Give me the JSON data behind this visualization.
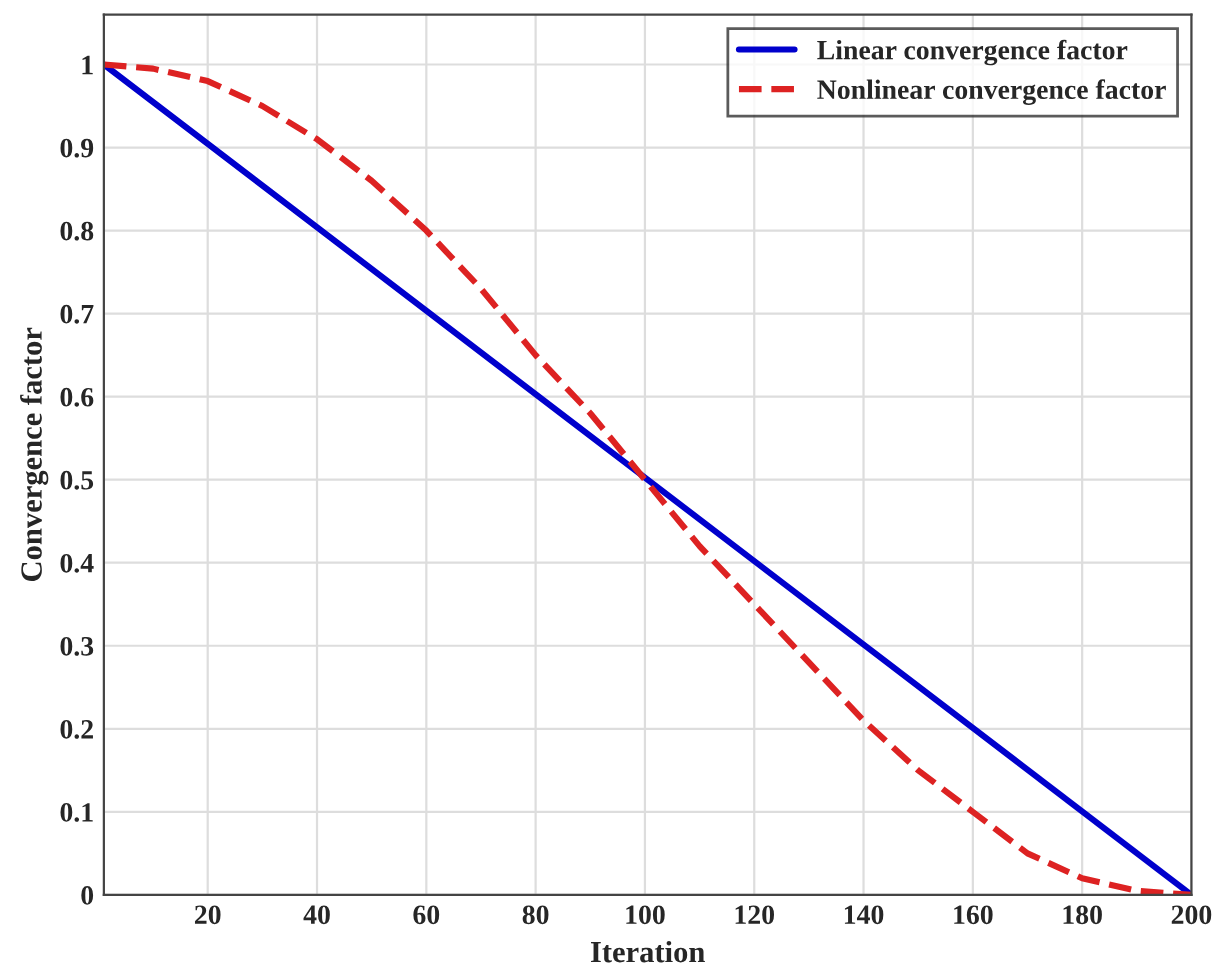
{
  "chart_data": {
    "type": "line",
    "xlabel": "Iteration",
    "ylabel": "Convergence factor",
    "xlim": [
      1,
      200
    ],
    "xticks": [
      20,
      40,
      60,
      80,
      100,
      120,
      140,
      160,
      180,
      200
    ],
    "ylim": [
      0,
      1.06
    ],
    "yticks": [
      0,
      0.1,
      0.2,
      0.3,
      0.4,
      0.5,
      0.6,
      0.7,
      0.8,
      0.9,
      1
    ],
    "grid": true,
    "legend": "top right",
    "series": [
      {
        "name": "Linear convergence factor",
        "color": "#0000cc",
        "line_style": "solid",
        "x": [
          1,
          200
        ],
        "values": [
          1.0,
          0.0
        ]
      },
      {
        "name": "Nonlinear convergence factor",
        "color": "#dd2222",
        "line_style": "dashed",
        "x": [
          1,
          10,
          20,
          30,
          40,
          50,
          60,
          70,
          80,
          90,
          100,
          110,
          120,
          130,
          140,
          150,
          160,
          170,
          180,
          190,
          200
        ],
        "values": [
          1.0,
          0.995,
          0.98,
          0.95,
          0.91,
          0.86,
          0.8,
          0.73,
          0.65,
          0.58,
          0.5,
          0.42,
          0.35,
          0.28,
          0.21,
          0.15,
          0.1,
          0.05,
          0.02,
          0.005,
          0.0
        ]
      }
    ]
  }
}
